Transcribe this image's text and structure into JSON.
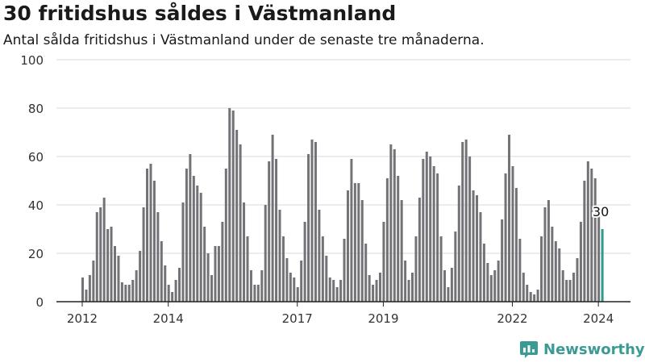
{
  "title": "30 fritidshus såldes i Västmanland",
  "subtitle": "Antal sålda fritidshus i Västmanland under de senaste tre månaderna.",
  "brand": {
    "name": "Newsworthy",
    "color": "#3a9b94",
    "icon": "newsworthy-logo-icon"
  },
  "colors": {
    "bar": "#737276",
    "highlight": "#2a9d8f",
    "axis": "#222222",
    "grid": "#d9d9d9"
  },
  "chart_data": {
    "type": "bar",
    "title": "30 fritidshus såldes i Västmanland",
    "subtitle": "Antal sålda fritidshus i Västmanland under de senaste tre månaderna.",
    "xlabel": "",
    "ylabel": "",
    "ylim": [
      0,
      100
    ],
    "yticks": [
      "0",
      "20",
      "40",
      "60",
      "80",
      "100"
    ],
    "xticks": [
      "2012",
      "2014",
      "2017",
      "2019",
      "2022",
      "2024"
    ],
    "grid": "horizontal",
    "annotation": {
      "text": "30",
      "target": "last"
    },
    "values": [
      10,
      5,
      11,
      17,
      37,
      39,
      43,
      30,
      31,
      23,
      19,
      8,
      7,
      7,
      9,
      13,
      21,
      39,
      55,
      57,
      50,
      37,
      25,
      15,
      7,
      4,
      9,
      14,
      41,
      55,
      61,
      52,
      48,
      45,
      31,
      20,
      11,
      23,
      23,
      33,
      55,
      80,
      79,
      71,
      65,
      41,
      27,
      13,
      7,
      7,
      13,
      40,
      58,
      69,
      59,
      38,
      27,
      18,
      12,
      10,
      6,
      17,
      33,
      61,
      67,
      66,
      38,
      27,
      19,
      10,
      9,
      6,
      9,
      26,
      46,
      59,
      49,
      49,
      42,
      24,
      11,
      7,
      9,
      12,
      33,
      51,
      65,
      63,
      52,
      42,
      17,
      9,
      12,
      27,
      43,
      59,
      62,
      60,
      56,
      53,
      27,
      13,
      6,
      14,
      29,
      48,
      66,
      67,
      60,
      46,
      44,
      37,
      24,
      16,
      11,
      13,
      17,
      34,
      53,
      69,
      56,
      47,
      26,
      12,
      7,
      4,
      3,
      5,
      27,
      39,
      42,
      31,
      25,
      22,
      13,
      9,
      9,
      12,
      18,
      33,
      50,
      58,
      55,
      51,
      38,
      30
    ]
  }
}
